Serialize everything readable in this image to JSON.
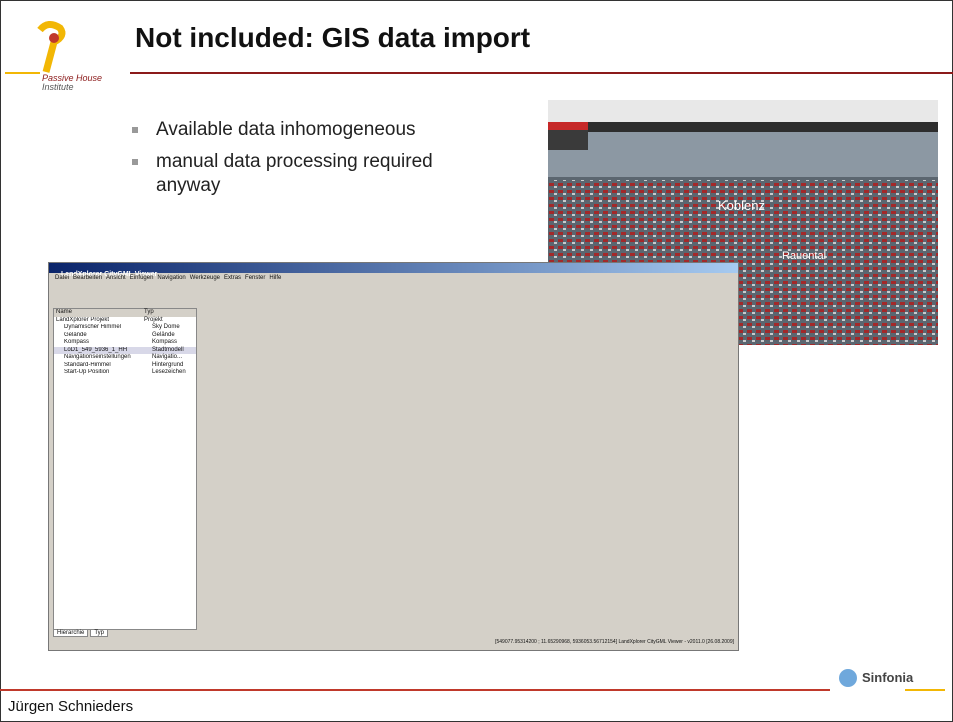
{
  "header": {
    "title": "Not included: GIS data import",
    "logo_line1": "Passive House",
    "logo_line2": "Institute"
  },
  "bullets": [
    "Available data inhomogeneous",
    "manual data processing required anyway"
  ],
  "browser": {
    "labels": [
      "Koblenz",
      "Rauental"
    ]
  },
  "viewer": {
    "title": "LandXplorer CityGML Viewer",
    "menu": [
      "Datei",
      "Bearbeiten",
      "Ansicht",
      "Einfügen",
      "Navigation",
      "Werkzeuge",
      "Extras",
      "Fenster",
      "Hilfe"
    ],
    "tree_headers": [
      "Name",
      "Typ"
    ],
    "tree": [
      [
        "LandXplorer Projekt",
        "Projekt"
      ],
      [
        "Dynamischer Himmel",
        "Sky Dome"
      ],
      [
        "Gelände",
        "Gelände"
      ],
      [
        "Kompass",
        "Kompass"
      ],
      [
        "LoD1_549_5936_1_HH",
        "Stadtmodell"
      ],
      [
        "Navigationseinstellungen",
        "Navigatio..."
      ],
      [
        "Standard-Himmel",
        "Hintergrund"
      ],
      [
        "Start-Up Position",
        "Lesezeichen"
      ]
    ],
    "tabs": [
      "Hierarchie",
      "Typ"
    ],
    "status": "[549077.95314200 ; 11.65290968, 5936053.56712154] LandXplorer CityGML Viewer - v2011.0 [26.08.2009]"
  },
  "footer": {
    "author": "Jürgen Schnieders",
    "sponsor": "Sinfonia"
  }
}
